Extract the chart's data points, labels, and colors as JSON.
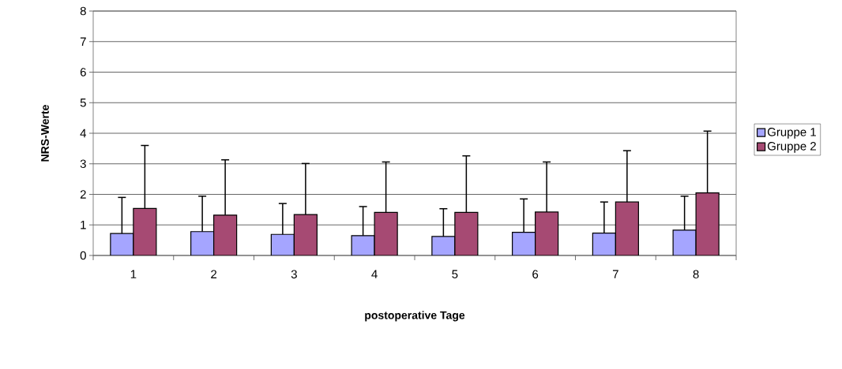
{
  "chart_data": {
    "type": "bar",
    "xlabel": "postoperative Tage",
    "ylabel": "NRS-Werte",
    "categories": [
      "1",
      "2",
      "3",
      "4",
      "5",
      "6",
      "7",
      "8"
    ],
    "series": [
      {
        "name": "Gruppe 1",
        "color": "#a5a5ff",
        "values": [
          0.72,
          0.78,
          0.69,
          0.65,
          0.62,
          0.76,
          0.73,
          0.83
        ],
        "errors": [
          [
            0.72,
            1.9
          ],
          [
            0.78,
            1.94
          ],
          [
            0.69,
            1.7
          ],
          [
            0.65,
            1.6
          ],
          [
            0.62,
            1.53
          ],
          [
            0.76,
            1.85
          ],
          [
            0.73,
            1.75
          ],
          [
            0.83,
            1.94
          ]
        ]
      },
      {
        "name": "Gruppe 2",
        "color": "#a64a73",
        "values": [
          1.54,
          1.32,
          1.34,
          1.41,
          1.41,
          1.42,
          1.75,
          2.05
        ],
        "errors": [
          [
            1.54,
            3.6
          ],
          [
            1.32,
            3.13
          ],
          [
            1.34,
            3.01
          ],
          [
            1.41,
            3.06
          ],
          [
            1.41,
            3.26
          ],
          [
            1.42,
            3.06
          ],
          [
            1.75,
            3.43
          ],
          [
            2.05,
            4.07
          ]
        ]
      }
    ],
    "ylim": [
      0,
      8
    ],
    "yticks": [
      0,
      1,
      2,
      3,
      4,
      5,
      6,
      7,
      8
    ],
    "grid": "y",
    "legend": "right"
  }
}
